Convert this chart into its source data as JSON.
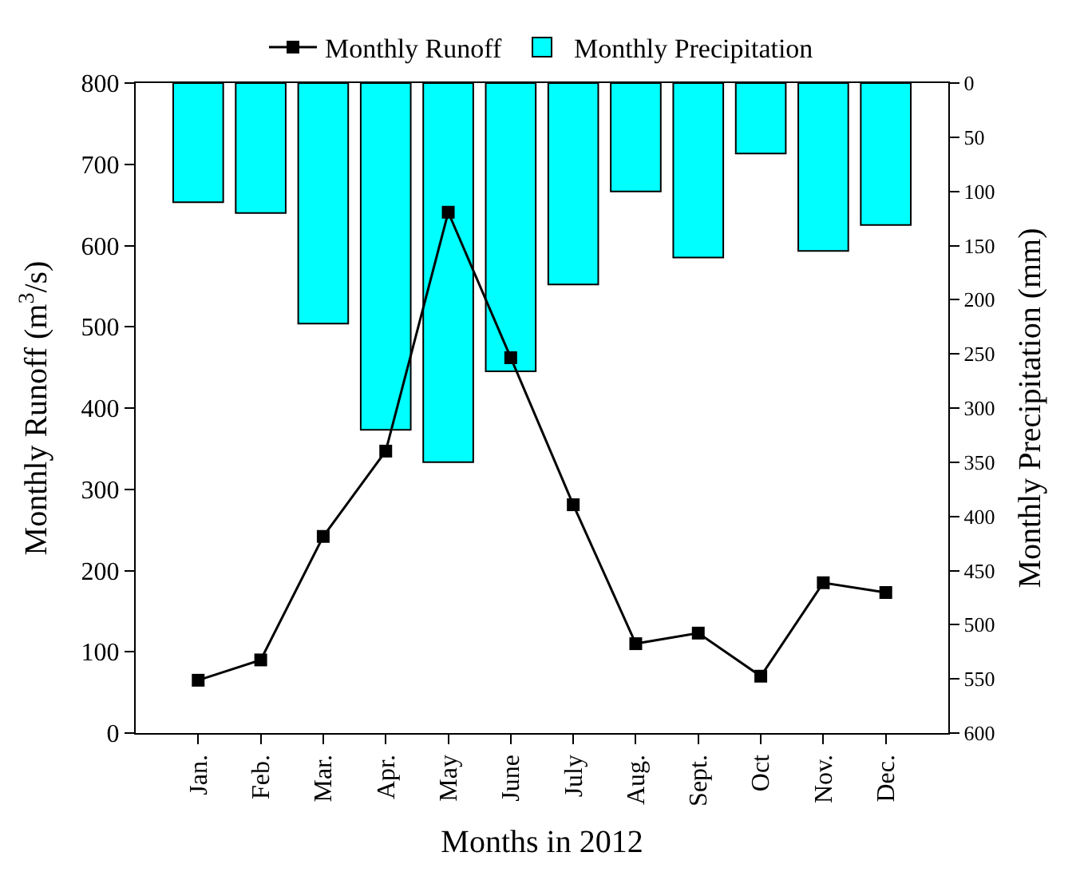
{
  "chart_data": {
    "type": "line",
    "xlabel": "Months in 2012",
    "ylabel": "Monthly Runoff (m$^{3}$/s)",
    "y2label": "Monthly Precipitation (mm)",
    "categories": [
      "Jan.",
      "Feb.",
      "Mar.",
      "Apr.",
      "May",
      "June",
      "July",
      "Aug.",
      "Sept.",
      "Oct",
      "Nov.",
      "Dec."
    ],
    "series": [
      {
        "name": "Monthly Runoff",
        "color": "#000000",
        "values": [
          65,
          90,
          242,
          347,
          641,
          462,
          281,
          110,
          123,
          70,
          185,
          173
        ]
      },
      {
        "name": "Monthly Precipitation",
        "type": "bar",
        "axis": "y2",
        "color": "#00ffff",
        "values": [
          110,
          120,
          222,
          320,
          350,
          266,
          186,
          100,
          161,
          65,
          155,
          131
        ]
      }
    ],
    "ylim": [
      0,
      800
    ],
    "yticks": [
      0,
      100,
      200,
      300,
      400,
      500,
      600,
      700,
      800
    ],
    "y2lim": [
      600,
      0
    ],
    "y2ticks": [
      0,
      50,
      100,
      150,
      200,
      250,
      300,
      350,
      400,
      450,
      500,
      550,
      600
    ],
    "marker": "square",
    "line_style": "solid",
    "legend": "top"
  }
}
